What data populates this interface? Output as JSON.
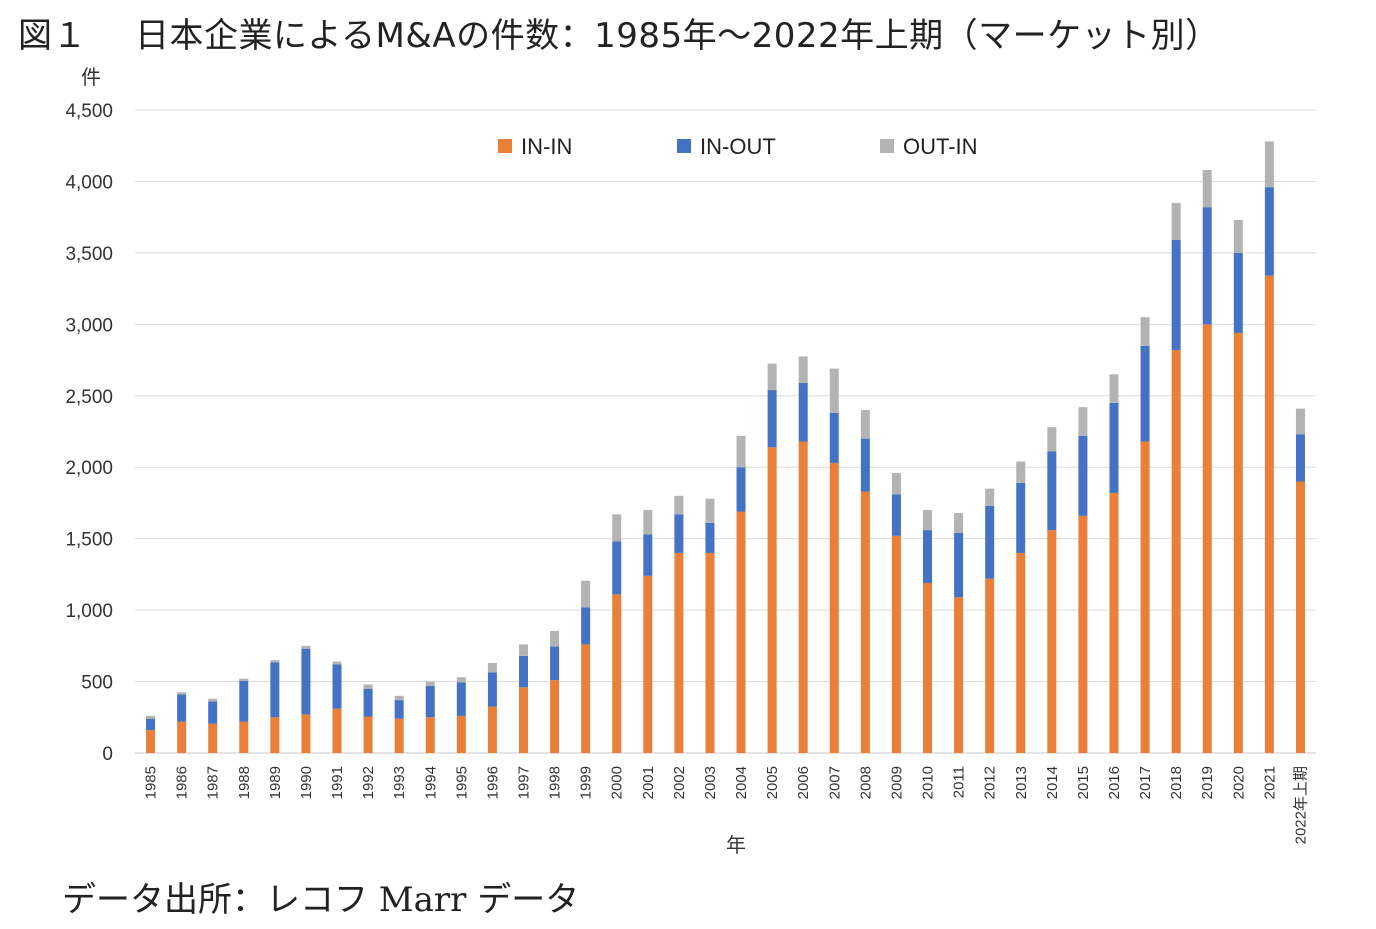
{
  "figure": {
    "number": "図１",
    "title": "日本企業によるM&Aの件数：1985年～2022年上期（マーケット別）",
    "source": "データ出所：レコフ Marr データ"
  },
  "chart_data": {
    "type": "bar",
    "stacked": true,
    "title": "日本企業によるM&Aの件数：1985年～2022年上期（マーケット別）",
    "ylabel": "件",
    "xlabel": "年",
    "ylim": [
      0,
      4500
    ],
    "yticks": [
      0,
      500,
      1000,
      1500,
      2000,
      2500,
      3000,
      3500,
      4000,
      4500
    ],
    "ytick_labels": [
      "0",
      "500",
      "1,000",
      "1,500",
      "2,000",
      "2,500",
      "3,000",
      "3,500",
      "4,000",
      "4,500"
    ],
    "grid": true,
    "legend_position": "top",
    "categories": [
      "1985",
      "1986",
      "1987",
      "1988",
      "1989",
      "1990",
      "1991",
      "1992",
      "1993",
      "1994",
      "1995",
      "1996",
      "1997",
      "1998",
      "1999",
      "2000",
      "2001",
      "2002",
      "2003",
      "2004",
      "2005",
      "2006",
      "2007",
      "2008",
      "2009",
      "2010",
      "2011",
      "2012",
      "2013",
      "2014",
      "2015",
      "2016",
      "2017",
      "2018",
      "2019",
      "2020",
      "2021",
      "2022年上期"
    ],
    "series": [
      {
        "name": "IN-IN",
        "color": "#E97F38",
        "values": [
          160,
          220,
          205,
          220,
          250,
          270,
          310,
          255,
          240,
          250,
          260,
          325,
          460,
          510,
          760,
          1110,
          1240,
          1400,
          1400,
          1690,
          2140,
          2180,
          2030,
          1830,
          1520,
          1190,
          1090,
          1220,
          1400,
          1560,
          1660,
          1820,
          2180,
          2820,
          3000,
          2940,
          3340,
          1900
        ]
      },
      {
        "name": "IN-OUT",
        "color": "#4472C4",
        "values": [
          80,
          190,
          155,
          285,
          385,
          460,
          310,
          195,
          130,
          220,
          235,
          240,
          220,
          235,
          260,
          370,
          290,
          270,
          210,
          310,
          400,
          410,
          350,
          370,
          290,
          370,
          450,
          510,
          490,
          550,
          560,
          630,
          670,
          770,
          820,
          560,
          620,
          330
        ]
      },
      {
        "name": "OUT-IN",
        "color": "#B3B3B3",
        "values": [
          20,
          15,
          20,
          15,
          15,
          20,
          20,
          30,
          30,
          30,
          35,
          65,
          80,
          110,
          185,
          190,
          170,
          130,
          170,
          220,
          185,
          185,
          310,
          200,
          150,
          140,
          140,
          120,
          150,
          170,
          200,
          200,
          200,
          260,
          260,
          230,
          320,
          180
        ]
      }
    ]
  }
}
